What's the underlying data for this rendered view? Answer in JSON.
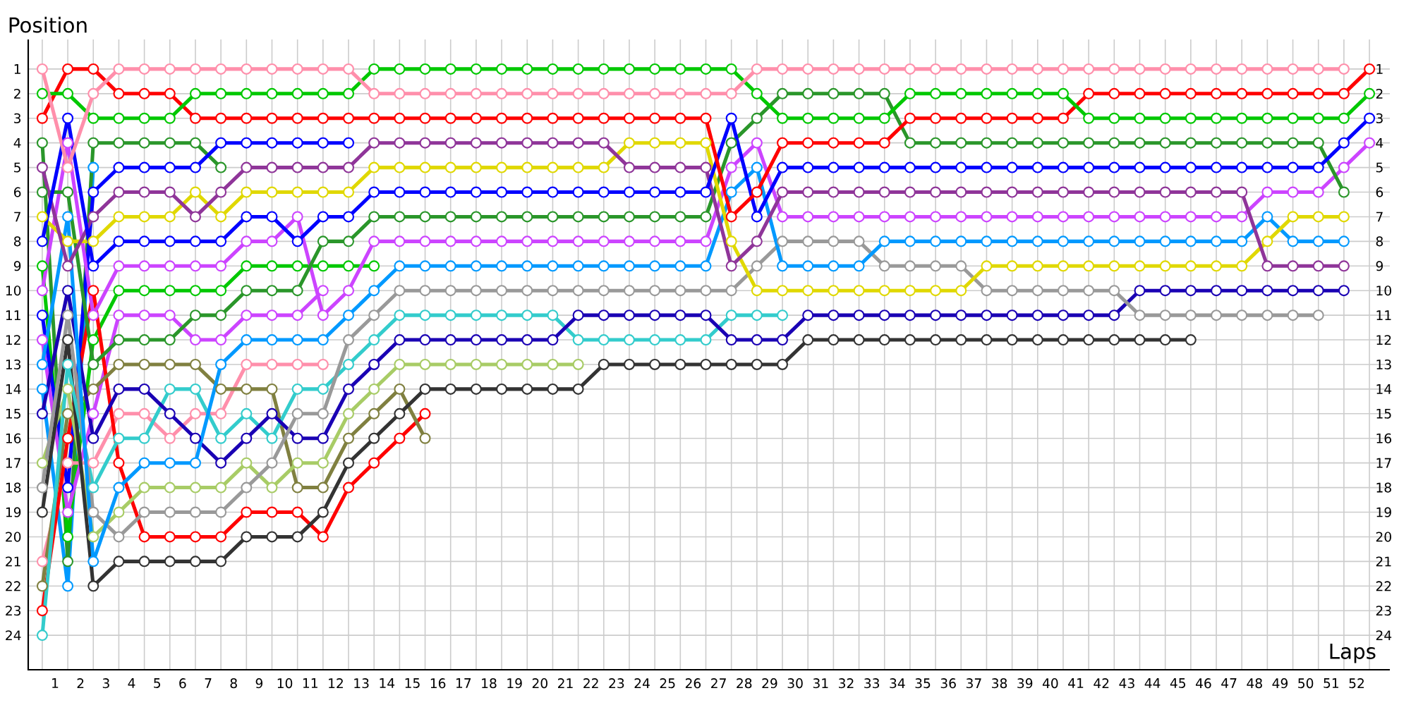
{
  "chart_data": {
    "type": "line",
    "xlabel": "Laps",
    "ylabel": "Position",
    "x": [
      0,
      1,
      2,
      3,
      4,
      5,
      6,
      7,
      8,
      9,
      10,
      11,
      12,
      13,
      14,
      15,
      16,
      17,
      18,
      19,
      20,
      21,
      22,
      23,
      24,
      25,
      26,
      27,
      28,
      29,
      30,
      31,
      32,
      33,
      34,
      35,
      36,
      37,
      38,
      39,
      40,
      41,
      42,
      43,
      44,
      45,
      46,
      47,
      48,
      49,
      50,
      51,
      52
    ],
    "xlim": [
      -0.55,
      52.8
    ],
    "ylim": [
      25.4,
      -0.2
    ],
    "y2lim": [
      25.4,
      -0.2
    ],
    "xticks": [
      {
        "value": 0,
        "label": null
      },
      {
        "value": 1,
        "label": null
      },
      {
        "value": 2,
        "label": null
      },
      {
        "value": 3,
        "label": null
      },
      {
        "value": 4,
        "label": null
      },
      {
        "value": 5,
        "label": null
      },
      {
        "value": 6,
        "label": null
      },
      {
        "value": 7,
        "label": null
      },
      {
        "value": 8,
        "label": null
      },
      {
        "value": 9,
        "label": null
      },
      {
        "value": 10,
        "label": null
      },
      {
        "value": 11,
        "label": null
      },
      {
        "value": 12,
        "label": null
      },
      {
        "value": 13,
        "label": null
      },
      {
        "value": 14,
        "label": null
      },
      {
        "value": 15,
        "label": null
      },
      {
        "value": 16,
        "label": null
      },
      {
        "value": 17,
        "label": null
      },
      {
        "value": 18,
        "label": null
      },
      {
        "value": 19,
        "label": null
      },
      {
        "value": 20,
        "label": null
      },
      {
        "value": 21,
        "label": null
      },
      {
        "value": 22,
        "label": null
      },
      {
        "value": 23,
        "label": null
      },
      {
        "value": 24,
        "label": null
      },
      {
        "value": 25,
        "label": null
      },
      {
        "value": 26,
        "label": null
      },
      {
        "value": 27,
        "label": null
      },
      {
        "value": 28,
        "label": null
      },
      {
        "value": 29,
        "label": null
      },
      {
        "value": 30,
        "label": null
      },
      {
        "value": 31,
        "label": null
      },
      {
        "value": 32,
        "label": null
      },
      {
        "value": 33,
        "label": null
      },
      {
        "value": 34,
        "label": null
      },
      {
        "value": 35,
        "label": null
      },
      {
        "value": 36,
        "label": null
      },
      {
        "value": 37,
        "label": null
      },
      {
        "value": 38,
        "label": null
      },
      {
        "value": 39,
        "label": null
      },
      {
        "value": 40,
        "label": null
      },
      {
        "value": 41,
        "label": null
      },
      {
        "value": 42,
        "label": null
      },
      {
        "value": 43,
        "label": null
      },
      {
        "value": 44,
        "label": null
      },
      {
        "value": 45,
        "label": null
      },
      {
        "value": 46,
        "label": null
      },
      {
        "value": 47,
        "label": null
      },
      {
        "value": 48,
        "label": null
      },
      {
        "value": 49,
        "label": null
      },
      {
        "value": 50,
        "label": null
      },
      {
        "value": 51,
        "label": null
      },
      {
        "value": 52,
        "label": null
      },
      {
        "value": 0.5,
        "label": "1"
      },
      {
        "value": 1.5,
        "label": "2"
      },
      {
        "value": 2.5,
        "label": "3"
      },
      {
        "value": 3.5,
        "label": "4"
      },
      {
        "value": 4.5,
        "label": "5"
      },
      {
        "value": 5.5,
        "label": "6"
      },
      {
        "value": 6.5,
        "label": "7"
      },
      {
        "value": 7.5,
        "label": "8"
      },
      {
        "value": 8.5,
        "label": "9"
      },
      {
        "value": 9.5,
        "label": "10"
      },
      {
        "value": 10.5,
        "label": "11"
      },
      {
        "value": 11.5,
        "label": "12"
      },
      {
        "value": 12.5,
        "label": "13"
      },
      {
        "value": 13.5,
        "label": "14"
      },
      {
        "value": 14.5,
        "label": "15"
      },
      {
        "value": 15.5,
        "label": "16"
      },
      {
        "value": 16.5,
        "label": "17"
      },
      {
        "value": 17.5,
        "label": "18"
      },
      {
        "value": 18.5,
        "label": "19"
      },
      {
        "value": 19.5,
        "label": "20"
      },
      {
        "value": 20.5,
        "label": "21"
      },
      {
        "value": 21.5,
        "label": "22"
      },
      {
        "value": 22.5,
        "label": "23"
      },
      {
        "value": 23.5,
        "label": "24"
      },
      {
        "value": 24.5,
        "label": "25"
      },
      {
        "value": 25.5,
        "label": "26"
      },
      {
        "value": 26.5,
        "label": "27"
      },
      {
        "value": 27.5,
        "label": "28"
      },
      {
        "value": 28.5,
        "label": "29"
      },
      {
        "value": 29.5,
        "label": "30"
      },
      {
        "value": 30.5,
        "label": "31"
      },
      {
        "value": 31.5,
        "label": "32"
      },
      {
        "value": 32.5,
        "label": "33"
      },
      {
        "value": 33.5,
        "label": "34"
      },
      {
        "value": 34.5,
        "label": "35"
      },
      {
        "value": 35.5,
        "label": "36"
      },
      {
        "value": 36.5,
        "label": "37"
      },
      {
        "value": 37.5,
        "label": "38"
      },
      {
        "value": 38.5,
        "label": "39"
      },
      {
        "value": 39.5,
        "label": "40"
      },
      {
        "value": 40.5,
        "label": "41"
      },
      {
        "value": 41.5,
        "label": "42"
      },
      {
        "value": 42.5,
        "label": "43"
      },
      {
        "value": 43.5,
        "label": "44"
      },
      {
        "value": 44.5,
        "label": "45"
      },
      {
        "value": 45.5,
        "label": "46"
      },
      {
        "value": 46.5,
        "label": "47"
      },
      {
        "value": 47.5,
        "label": "48"
      },
      {
        "value": 48.5,
        "label": "49"
      },
      {
        "value": 49.5,
        "label": "50"
      },
      {
        "value": 50.5,
        "label": "51"
      },
      {
        "value": 51.5,
        "label": "52"
      }
    ],
    "yticks": [
      1,
      2,
      3,
      4,
      5,
      6,
      7,
      8,
      9,
      10,
      11,
      12,
      13,
      14,
      15,
      16,
      17,
      18,
      19,
      20,
      21,
      22,
      23,
      24
    ],
    "y2ticks": [
      1,
      2,
      3,
      4,
      5,
      6,
      7,
      8,
      9,
      10,
      11,
      12,
      13,
      14,
      15,
      16,
      17,
      18,
      19,
      20,
      21,
      22,
      23,
      24
    ],
    "grid": true,
    "marker": "circle",
    "series": [
      {
        "color": "#0099ff",
        "values": [
          14,
          22,
          5,
          null,
          null,
          null,
          null,
          null,
          null,
          null,
          null,
          null,
          null,
          null,
          null,
          null,
          null,
          null,
          null,
          null,
          null,
          null,
          null,
          null,
          null,
          null,
          null,
          null,
          null,
          null,
          null,
          null,
          null,
          null,
          null,
          null,
          null,
          null,
          null,
          null,
          null,
          null,
          null,
          null,
          null,
          null,
          null,
          null,
          null,
          null,
          null,
          null,
          null
        ]
      },
      {
        "color": "#2a962a",
        "values": [
          4,
          21,
          4,
          4,
          4,
          4,
          4,
          5,
          null,
          null,
          null,
          null,
          null,
          null,
          null,
          null,
          null,
          null,
          null,
          null,
          null,
          null,
          null,
          null,
          null,
          null,
          null,
          null,
          null,
          null,
          null,
          null,
          null,
          null,
          null,
          null,
          null,
          null,
          null,
          null,
          null,
          null,
          null,
          null,
          null,
          null,
          null,
          null,
          null,
          null,
          null,
          null,
          null
        ]
      },
      {
        "color": "#00c800",
        "values": [
          9,
          20,
          12,
          10,
          10,
          10,
          10,
          10,
          9,
          9,
          9,
          9,
          9,
          9,
          null,
          null,
          null,
          null,
          null,
          null,
          null,
          null,
          null,
          null,
          null,
          null,
          null,
          null,
          null,
          null,
          null,
          null,
          null,
          null,
          null,
          null,
          null,
          null,
          null,
          null,
          null,
          null,
          null,
          null,
          null,
          null,
          null,
          null,
          null,
          null,
          null,
          null,
          null
        ]
      },
      {
        "color": "#cc44ff",
        "values": [
          12,
          19,
          15,
          11,
          11,
          11,
          12,
          12,
          11,
          11,
          11,
          10,
          null,
          null,
          null,
          null,
          null,
          null,
          null,
          null,
          null,
          null,
          null,
          null,
          null,
          null,
          null,
          null,
          null,
          null,
          null,
          null,
          null,
          null,
          null,
          null,
          null,
          null,
          null,
          null,
          null,
          null,
          null,
          null,
          null,
          null,
          null,
          null,
          null,
          null,
          null,
          null,
          null
        ]
      },
      {
        "color": "#ff8fab",
        "values": [
          21,
          17,
          17,
          15,
          15,
          16,
          15,
          15,
          13,
          13,
          13,
          13,
          null,
          null,
          null,
          null,
          null,
          null,
          null,
          null,
          null,
          null,
          null,
          null,
          null,
          null,
          null,
          null,
          null,
          null,
          null,
          null,
          null,
          null,
          null,
          null,
          null,
          null,
          null,
          null,
          null,
          null,
          null,
          null,
          null,
          null,
          null,
          null,
          null,
          null,
          null,
          null,
          null
        ]
      },
      {
        "color": "#0000ff",
        "values": [
          11,
          18,
          6,
          5,
          5,
          5,
          5,
          4,
          4,
          4,
          4,
          4,
          4,
          null,
          null,
          null,
          null,
          null,
          null,
          null,
          null,
          null,
          null,
          null,
          null,
          null,
          null,
          null,
          null,
          null,
          null,
          null,
          null,
          null,
          null,
          null,
          null,
          null,
          null,
          null,
          null,
          null,
          null,
          null,
          null,
          null,
          null,
          null,
          null,
          null,
          null,
          null,
          null
        ]
      },
      {
        "color": "#ff0000",
        "values": [
          23,
          16,
          10,
          17,
          20,
          20,
          20,
          20,
          19,
          19,
          19,
          20,
          18,
          17,
          16,
          15,
          null,
          null,
          null,
          null,
          null,
          null,
          null,
          null,
          null,
          null,
          null,
          null,
          null,
          null,
          null,
          null,
          null,
          null,
          null,
          null,
          null,
          null,
          null,
          null,
          null,
          null,
          null,
          null,
          null,
          null,
          null,
          null,
          null,
          null,
          null,
          null,
          null
        ]
      },
      {
        "color": "#808040",
        "values": [
          22,
          15,
          14,
          13,
          13,
          13,
          13,
          14,
          14,
          14,
          18,
          18,
          16,
          15,
          14,
          16,
          null,
          null,
          null,
          null,
          null,
          null,
          null,
          null,
          null,
          null,
          null,
          null,
          null,
          null,
          null,
          null,
          null,
          null,
          null,
          null,
          null,
          null,
          null,
          null,
          null,
          null,
          null,
          null,
          null,
          null,
          null,
          null,
          null,
          null,
          null,
          null,
          null
        ]
      },
      {
        "color": "#a8cc66",
        "values": [
          17,
          14,
          20,
          19,
          18,
          18,
          18,
          18,
          17,
          18,
          17,
          17,
          15,
          14,
          13,
          13,
          13,
          13,
          13,
          13,
          13,
          13,
          null,
          null,
          null,
          null,
          null,
          null,
          null,
          null,
          null,
          null,
          null,
          null,
          null,
          null,
          null,
          null,
          null,
          null,
          null,
          null,
          null,
          null,
          null,
          null,
          null,
          null,
          null,
          null,
          null,
          null,
          null
        ]
      },
      {
        "color": "#333333",
        "values": [
          19,
          12,
          22,
          21,
          21,
          21,
          21,
          21,
          20,
          20,
          20,
          19,
          17,
          16,
          15,
          14,
          14,
          14,
          14,
          14,
          14,
          14,
          13,
          13,
          13,
          13,
          13,
          13,
          13,
          13,
          12,
          12,
          12,
          12,
          12,
          12,
          12,
          12,
          12,
          12,
          12,
          12,
          12,
          12,
          12,
          12,
          null,
          null,
          null,
          null,
          null,
          null,
          null
        ]
      },
      {
        "color": "#33cccc",
        "values": [
          24,
          13,
          18,
          16,
          16,
          14,
          14,
          16,
          15,
          16,
          14,
          14,
          13,
          12,
          11,
          11,
          11,
          11,
          11,
          11,
          11,
          12,
          12,
          12,
          12,
          12,
          12,
          11,
          11,
          11,
          null,
          null,
          null,
          null,
          null,
          null,
          null,
          null,
          null,
          null,
          null,
          null,
          null,
          null,
          null,
          null,
          null,
          null,
          null,
          null,
          null,
          null,
          null
        ]
      },
      {
        "color": "#1a00b4",
        "values": [
          15,
          10,
          16,
          14,
          14,
          15,
          16,
          17,
          16,
          15,
          16,
          16,
          14,
          13,
          12,
          12,
          12,
          12,
          12,
          12,
          12,
          11,
          11,
          11,
          11,
          11,
          11,
          12,
          12,
          12,
          11,
          11,
          11,
          11,
          11,
          11,
          11,
          11,
          11,
          11,
          11,
          11,
          11,
          10,
          10,
          10,
          10,
          10,
          10,
          10,
          10,
          10,
          null
        ]
      },
      {
        "color": "#999999",
        "values": [
          18,
          11,
          19,
          20,
          19,
          19,
          19,
          19,
          18,
          17,
          15,
          15,
          12,
          11,
          10,
          10,
          10,
          10,
          10,
          10,
          10,
          10,
          10,
          10,
          10,
          10,
          10,
          10,
          9,
          8,
          8,
          8,
          8,
          9,
          9,
          9,
          9,
          10,
          10,
          10,
          10,
          10,
          10,
          11,
          11,
          11,
          11,
          11,
          11,
          11,
          11,
          null,
          null
        ]
      },
      {
        "color": "#0099ff",
        "values": [
          13,
          7,
          21,
          18,
          17,
          17,
          17,
          13,
          12,
          12,
          12,
          12,
          11,
          10,
          9,
          9,
          9,
          9,
          9,
          9,
          9,
          9,
          9,
          9,
          9,
          9,
          9,
          6,
          5,
          9,
          9,
          9,
          9,
          8,
          8,
          8,
          8,
          8,
          8,
          8,
          8,
          8,
          8,
          8,
          8,
          8,
          8,
          8,
          7,
          8,
          8,
          8,
          null
        ]
      },
      {
        "color": "#cc44ff",
        "values": [
          10,
          4,
          11,
          9,
          9,
          9,
          9,
          9,
          8,
          8,
          7,
          11,
          10,
          8,
          8,
          8,
          8,
          8,
          8,
          8,
          8,
          8,
          8,
          8,
          8,
          8,
          8,
          5,
          4,
          7,
          7,
          7,
          7,
          7,
          7,
          7,
          7,
          7,
          7,
          7,
          7,
          7,
          7,
          7,
          7,
          7,
          7,
          7,
          6,
          6,
          6,
          5,
          4
        ]
      },
      {
        "color": "#2a962a",
        "values": [
          6,
          6,
          13,
          12,
          12,
          12,
          11,
          11,
          10,
          10,
          10,
          8,
          8,
          7,
          7,
          7,
          7,
          7,
          7,
          7,
          7,
          7,
          7,
          7,
          7,
          7,
          7,
          4,
          3,
          2,
          2,
          2,
          2,
          2,
          4,
          4,
          4,
          4,
          4,
          4,
          4,
          4,
          4,
          4,
          4,
          4,
          4,
          4,
          4,
          4,
          4,
          6,
          null
        ]
      },
      {
        "color": "#e0d800",
        "values": [
          7,
          8,
          8,
          7,
          7,
          7,
          6,
          7,
          6,
          6,
          6,
          6,
          6,
          5,
          5,
          5,
          5,
          5,
          5,
          5,
          5,
          5,
          5,
          4,
          4,
          4,
          4,
          8,
          10,
          10,
          10,
          10,
          10,
          10,
          10,
          10,
          10,
          9,
          9,
          9,
          9,
          9,
          9,
          9,
          9,
          9,
          9,
          9,
          8,
          7,
          7,
          7,
          null
        ]
      },
      {
        "color": "#8f3599",
        "values": [
          5,
          9,
          7,
          6,
          6,
          6,
          7,
          6,
          5,
          5,
          5,
          5,
          5,
          4,
          4,
          4,
          4,
          4,
          4,
          4,
          4,
          4,
          4,
          5,
          5,
          5,
          5,
          9,
          8,
          6,
          6,
          6,
          6,
          6,
          6,
          6,
          6,
          6,
          6,
          6,
          6,
          6,
          6,
          6,
          6,
          6,
          6,
          6,
          9,
          9,
          9,
          9,
          null
        ]
      },
      {
        "color": "#0000ff",
        "values": [
          8,
          3,
          9,
          8,
          8,
          8,
          8,
          8,
          7,
          7,
          8,
          7,
          7,
          6,
          6,
          6,
          6,
          6,
          6,
          6,
          6,
          6,
          6,
          6,
          6,
          6,
          6,
          3,
          7,
          5,
          5,
          5,
          5,
          5,
          5,
          5,
          5,
          5,
          5,
          5,
          5,
          5,
          5,
          5,
          5,
          5,
          5,
          5,
          5,
          5,
          5,
          4,
          3
        ]
      },
      {
        "color": "#ff0000",
        "values": [
          3,
          1,
          1,
          2,
          2,
          2,
          3,
          3,
          3,
          3,
          3,
          3,
          3,
          3,
          3,
          3,
          3,
          3,
          3,
          3,
          3,
          3,
          3,
          3,
          3,
          3,
          3,
          7,
          6,
          4,
          4,
          4,
          4,
          4,
          3,
          3,
          3,
          3,
          3,
          3,
          3,
          2,
          2,
          2,
          2,
          2,
          2,
          2,
          2,
          2,
          2,
          2,
          1
        ]
      },
      {
        "color": "#00c800",
        "values": [
          2,
          2,
          3,
          3,
          3,
          3,
          2,
          2,
          2,
          2,
          2,
          2,
          2,
          1,
          1,
          1,
          1,
          1,
          1,
          1,
          1,
          1,
          1,
          1,
          1,
          1,
          1,
          1,
          2,
          3,
          3,
          3,
          3,
          3,
          2,
          2,
          2,
          2,
          2,
          2,
          2,
          3,
          3,
          3,
          3,
          3,
          3,
          3,
          3,
          3,
          3,
          3,
          2
        ]
      },
      {
        "color": "#ff8fab",
        "values": [
          1,
          5,
          2,
          1,
          1,
          1,
          1,
          1,
          1,
          1,
          1,
          1,
          1,
          2,
          2,
          2,
          2,
          2,
          2,
          2,
          2,
          2,
          2,
          2,
          2,
          2,
          2,
          2,
          1,
          1,
          1,
          1,
          1,
          1,
          1,
          1,
          1,
          1,
          1,
          1,
          1,
          1,
          1,
          1,
          1,
          1,
          1,
          1,
          1,
          1,
          1,
          1,
          null
        ]
      }
    ]
  }
}
